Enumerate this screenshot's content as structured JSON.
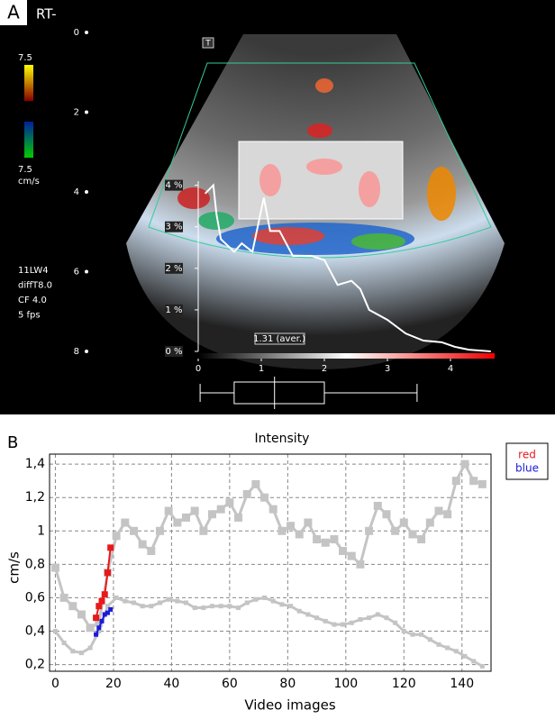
{
  "panel_a": {
    "label": "A",
    "side": "RT-",
    "scale_top": "7.5",
    "scale_bottom": "7.5",
    "scale_unit": "cm/s",
    "settings": [
      "11LW4",
      "diffT8.0",
      "CF 4.0",
      "5 fps"
    ],
    "depth_ticks": [
      "0",
      "2",
      "4",
      "6",
      "8"
    ],
    "icon": "T"
  },
  "chart_data": [
    {
      "type": "line",
      "color": "#ffffff",
      "x": [
        0.11,
        0.24,
        0.29,
        0.36,
        0.57,
        0.69,
        0.86,
        1.04,
        1.14,
        1.29,
        1.5,
        1.79,
        2.0,
        2.21,
        2.43,
        2.57,
        2.71,
        3.0,
        3.29,
        3.57,
        3.86,
        4.07,
        4.29,
        4.64
      ],
      "values": [
        3.8,
        4.0,
        3.3,
        2.7,
        2.4,
        2.6,
        2.4,
        3.7,
        2.9,
        2.9,
        2.3,
        2.3,
        2.2,
        1.6,
        1.7,
        1.5,
        1.0,
        0.76,
        0.43,
        0.26,
        0.22,
        0.11,
        0.04,
        0
      ],
      "xlim": [
        0,
        4.7
      ],
      "xticks": [
        0,
        1,
        2,
        3,
        4
      ],
      "ylim": [
        0,
        4.1
      ],
      "yticks": [
        {
          "value": 0,
          "label": "0 %"
        },
        {
          "value": 1,
          "label": "1 %"
        },
        {
          "value": 2,
          "label": "2 %"
        },
        {
          "value": 3,
          "label": "3 %"
        },
        {
          "value": 4,
          "label": "4 %"
        }
      ],
      "annotation": "1.31 (aver.)",
      "box": {
        "min": 0.03,
        "q1": 0.57,
        "median": 1.21,
        "q3": 2.0,
        "max": 3.47
      }
    },
    {
      "type": "line",
      "panel_label": "B",
      "title": "Intensity",
      "xlabel": "Video images",
      "ylabel": "cm/s",
      "xlim": [
        -2,
        150
      ],
      "xticks": [
        0,
        20,
        40,
        60,
        80,
        100,
        120,
        140
      ],
      "ylim": [
        0.16,
        1.46
      ],
      "yticks": [
        {
          "value": 0.2,
          "label": "0,2"
        },
        {
          "value": 0.4,
          "label": "0,4"
        },
        {
          "value": 0.6,
          "label": "0,6"
        },
        {
          "value": 0.8,
          "label": "0,8"
        },
        1,
        {
          "value": 1.2,
          "label": "1,2"
        },
        {
          "value": 1.4,
          "label": "1,4"
        }
      ],
      "grid": true,
      "legend": "outside-right",
      "series": [
        {
          "color": "#c4c4c4",
          "marker_size": 9,
          "line_width": 3,
          "x": [
            0,
            3,
            6,
            9,
            12,
            15,
            18,
            21,
            24,
            27,
            30,
            33,
            36,
            39,
            42,
            45,
            48,
            51,
            54,
            57,
            60,
            63,
            66,
            69,
            72,
            75,
            78,
            81,
            84,
            87,
            90,
            93,
            96,
            99,
            102,
            105,
            108,
            111,
            114,
            117,
            120,
            123,
            126,
            129,
            132,
            135,
            138,
            141,
            144,
            147
          ],
          "values": [
            0.78,
            0.6,
            0.55,
            0.5,
            0.42,
            0.45,
            0.75,
            0.97,
            1.05,
            1.0,
            0.92,
            0.88,
            1.0,
            1.12,
            1.05,
            1.08,
            1.12,
            1.0,
            1.1,
            1.13,
            1.17,
            1.08,
            1.22,
            1.28,
            1.2,
            1.13,
            1.0,
            1.03,
            0.98,
            1.05,
            0.95,
            0.93,
            0.95,
            0.88,
            0.85,
            0.8,
            1.0,
            1.15,
            1.1,
            1.0,
            1.05,
            0.98,
            0.95,
            1.05,
            1.12,
            1.1,
            1.3,
            1.4,
            1.3,
            1.28
          ]
        },
        {
          "color": "#c4c4c4",
          "marker_size": 5,
          "line_width": 3,
          "x": [
            0,
            3,
            6,
            9,
            12,
            15,
            18,
            21,
            24,
            27,
            30,
            33,
            36,
            39,
            42,
            45,
            48,
            51,
            54,
            57,
            60,
            63,
            66,
            69,
            72,
            75,
            78,
            81,
            84,
            87,
            90,
            93,
            96,
            99,
            102,
            105,
            108,
            111,
            114,
            117,
            120,
            123,
            126,
            129,
            132,
            135,
            138,
            141,
            144,
            147
          ],
          "values": [
            0.4,
            0.33,
            0.28,
            0.27,
            0.3,
            0.4,
            0.55,
            0.6,
            0.58,
            0.57,
            0.55,
            0.55,
            0.57,
            0.59,
            0.58,
            0.57,
            0.54,
            0.54,
            0.55,
            0.55,
            0.55,
            0.54,
            0.57,
            0.59,
            0.6,
            0.58,
            0.56,
            0.55,
            0.52,
            0.5,
            0.48,
            0.46,
            0.44,
            0.44,
            0.45,
            0.47,
            0.48,
            0.5,
            0.48,
            0.45,
            0.4,
            0.38,
            0.38,
            0.35,
            0.32,
            0.3,
            0.28,
            0.25,
            0.22,
            0.19
          ]
        },
        {
          "name": "red",
          "color": "#e8191a",
          "marker_size": 7,
          "line_width": 2,
          "x": [
            14,
            15,
            16,
            17,
            18,
            19
          ],
          "values": [
            0.48,
            0.55,
            0.58,
            0.62,
            0.75,
            0.9
          ]
        },
        {
          "name": "blue",
          "color": "#1a1ad8",
          "marker_size": 5,
          "line_width": 2,
          "x": [
            14,
            15,
            16,
            17,
            18,
            19
          ],
          "values": [
            0.38,
            0.42,
            0.46,
            0.5,
            0.51,
            0.53
          ]
        }
      ]
    }
  ]
}
